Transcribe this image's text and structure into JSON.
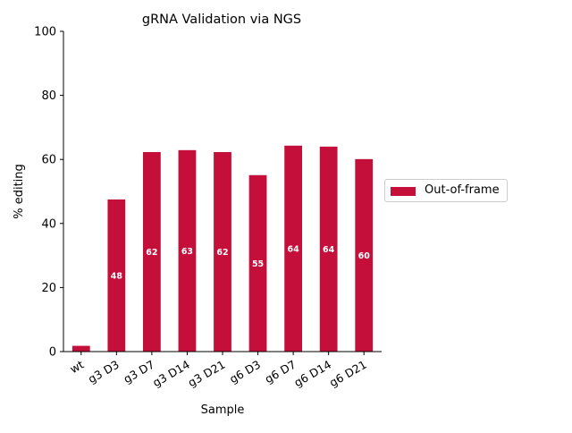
{
  "colors": {
    "bar": "#c40f3a",
    "axis": "#000000",
    "bar_label": "#ffffff"
  },
  "chart_data": {
    "type": "bar",
    "title": "gRNA Validation via NGS",
    "xlabel": "Sample",
    "ylabel": "% editing",
    "ylim": [
      0,
      100
    ],
    "yticks": [
      0,
      20,
      40,
      60,
      80,
      100
    ],
    "grid": false,
    "legend_position": "center-right, outside plot",
    "categories": [
      "wt",
      "g3 D3",
      "g3 D7",
      "g3 D14",
      "g3 D21",
      "g6 D3",
      "g6 D7",
      "g6 D14",
      "g6 D21"
    ],
    "series": [
      {
        "name": "Out-of-frame",
        "values": [
          1.8,
          47.5,
          62.3,
          62.9,
          62.3,
          55.1,
          64.3,
          64.0,
          60.1
        ],
        "labels": [
          "",
          "48",
          "62",
          "63",
          "62",
          "55",
          "64",
          "64",
          "60"
        ]
      }
    ]
  }
}
